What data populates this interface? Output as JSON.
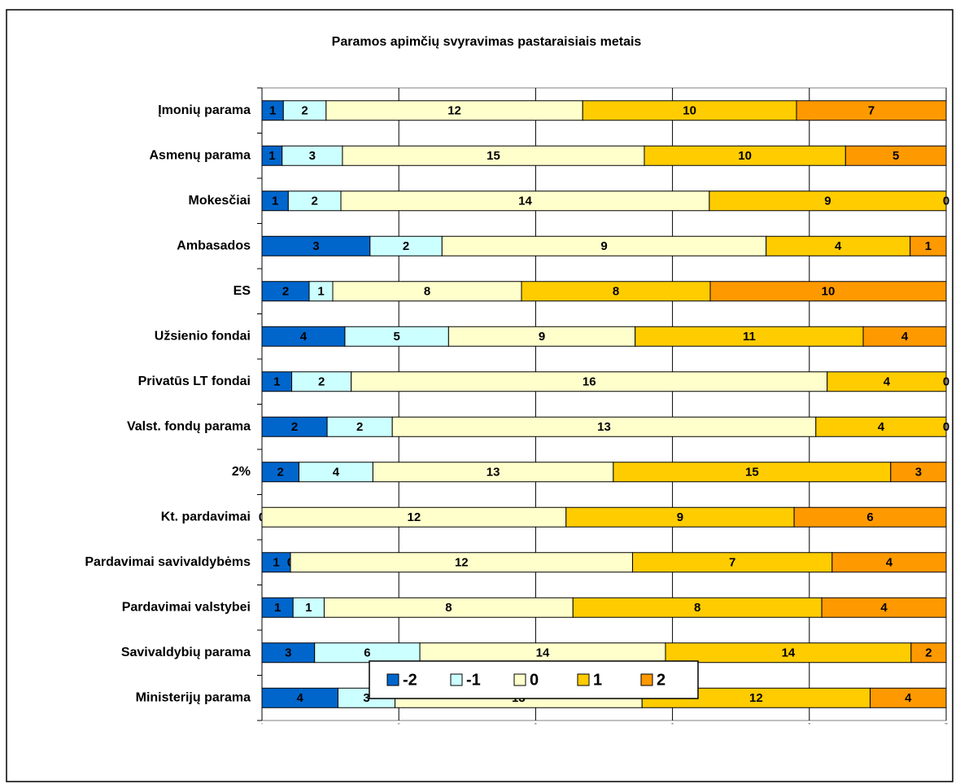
{
  "chart_data": {
    "type": "bar",
    "orientation": "horizontal",
    "stacking": "percent",
    "title": "Paramos apimčių svyravimas pastaraisiais metais",
    "categories": [
      "Įmonių parama",
      "Asmenų parama",
      "Mokesčiai",
      "Ambasados",
      "ES",
      "Užsienio fondai",
      "Privatūs LT fondai",
      "Valst. fondų parama",
      "2%",
      "Kt. pardavimai",
      "Pardavimai savivaldybėms",
      "Pardavimai valstybei",
      "Savivaldybių parama",
      "Ministerijų parama"
    ],
    "series": [
      {
        "name": "-2",
        "color": "#0066cc",
        "values": [
          1,
          1,
          1,
          3,
          2,
          4,
          1,
          2,
          2,
          0,
          1,
          1,
          3,
          4
        ]
      },
      {
        "name": "-1",
        "color": "#ccffff",
        "values": [
          2,
          3,
          2,
          2,
          1,
          5,
          2,
          2,
          4,
          0,
          0,
          1,
          6,
          3
        ]
      },
      {
        "name": "0",
        "color": "#ffffcc",
        "values": [
          12,
          15,
          14,
          9,
          8,
          9,
          16,
          13,
          13,
          12,
          12,
          8,
          14,
          13
        ]
      },
      {
        "name": "1",
        "color": "#ffcc00",
        "values": [
          10,
          10,
          9,
          4,
          8,
          11,
          4,
          4,
          15,
          9,
          7,
          8,
          14,
          12
        ]
      },
      {
        "name": "2",
        "color": "#ff9900",
        "values": [
          7,
          5,
          0,
          1,
          10,
          4,
          0,
          0,
          3,
          6,
          4,
          4,
          2,
          4
        ]
      }
    ],
    "xlim": [
      0,
      100
    ],
    "xticks": [
      0,
      20,
      40,
      60,
      80,
      100
    ],
    "grid": true,
    "legend": "bottom"
  }
}
